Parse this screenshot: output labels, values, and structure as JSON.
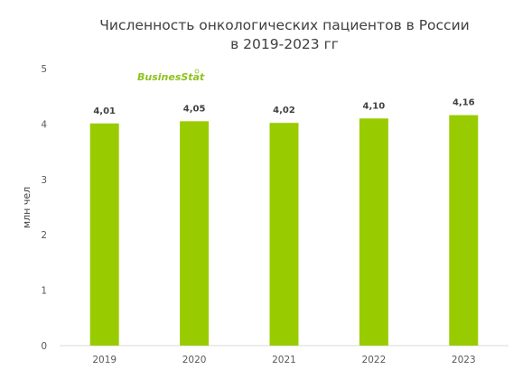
{
  "chart_data": {
    "type": "bar",
    "title_line1": "Численность онкологических пациентов в России",
    "title_line2": "в 2019-2023 гг",
    "ylabel": "млн чел",
    "xlabel": "",
    "categories": [
      "2019",
      "2020",
      "2021",
      "2022",
      "2023"
    ],
    "values": [
      4.01,
      4.05,
      4.02,
      4.1,
      4.16
    ],
    "value_labels": [
      "4,01",
      "4,05",
      "4,02",
      "4,10",
      "4,16"
    ],
    "ylim": [
      0,
      5
    ],
    "yticks": [
      "0",
      "1",
      "2",
      "3",
      "4",
      "5"
    ],
    "grid": false,
    "bar_color": "#99cc00",
    "watermark": "BusinesStat"
  }
}
